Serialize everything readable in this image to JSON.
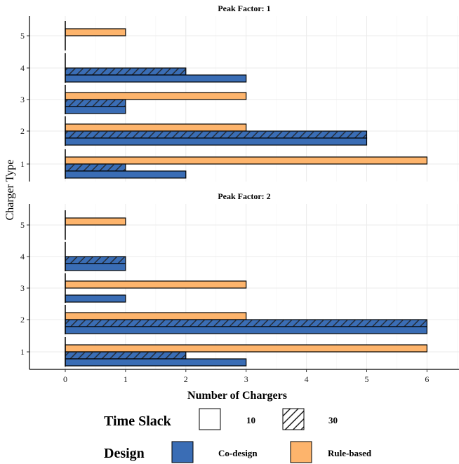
{
  "chart_data": {
    "type": "bar",
    "orientation": "horizontal",
    "xlabel": "Number of Chargers",
    "ylabel": "Charger Type",
    "xlim": [
      -0.6,
      6.6
    ],
    "x_ticks": [
      0,
      1,
      2,
      3,
      4,
      5,
      6
    ],
    "categories": [
      "1",
      "2",
      "3",
      "4",
      "5"
    ],
    "grid": true,
    "legend_position": "bottom",
    "legend": {
      "time_slack": {
        "title": "Time Slack",
        "entries": [
          "10",
          "30"
        ]
      },
      "design": {
        "title": "Design",
        "entries": [
          "Co-design",
          "Rule-based"
        ]
      }
    },
    "colors": {
      "Co-design": "#3a6db5",
      "Rule-based": "#fdb46c"
    },
    "panels": [
      {
        "title": "Peak Factor: 1",
        "series": [
          {
            "design": "Co-design",
            "time_slack": "10",
            "values": [
              2,
              5,
              1,
              3,
              0
            ]
          },
          {
            "design": "Co-design",
            "time_slack": "30",
            "values": [
              1,
              5,
              1,
              2,
              0
            ]
          },
          {
            "design": "Rule-based",
            "time_slack": "10",
            "values": [
              6,
              3,
              3,
              0,
              1
            ]
          },
          {
            "design": "Rule-based",
            "time_slack": "30",
            "values": [
              0,
              0,
              0,
              0,
              0
            ]
          }
        ]
      },
      {
        "title": "Peak Factor: 2",
        "series": [
          {
            "design": "Co-design",
            "time_slack": "10",
            "values": [
              3,
              6,
              1,
              1,
              0
            ]
          },
          {
            "design": "Co-design",
            "time_slack": "30",
            "values": [
              2,
              6,
              0,
              1,
              0
            ]
          },
          {
            "design": "Rule-based",
            "time_slack": "10",
            "values": [
              6,
              3,
              3,
              0,
              1
            ]
          },
          {
            "design": "Rule-based",
            "time_slack": "30",
            "values": [
              0,
              0,
              0,
              0,
              0
            ]
          }
        ]
      }
    ]
  }
}
